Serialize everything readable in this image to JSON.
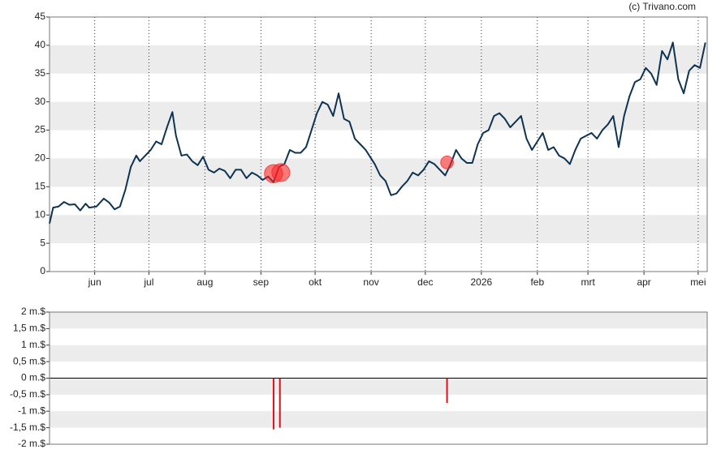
{
  "credit": "(c) Trivano.com",
  "chart_data": [
    {
      "type": "line",
      "color": "#0e3352",
      "grid": true,
      "xlim": [
        0,
        364
      ],
      "ylim": [
        0,
        45
      ],
      "yticks": [
        0,
        5,
        10,
        15,
        20,
        25,
        30,
        35,
        40,
        45
      ],
      "xticks": [
        {
          "value": 25,
          "label": "jun"
        },
        {
          "value": 55,
          "label": "jul"
        },
        {
          "value": 86,
          "label": "aug"
        },
        {
          "value": 117,
          "label": "sep"
        },
        {
          "value": 147,
          "label": "okt"
        },
        {
          "value": 178,
          "label": "nov"
        },
        {
          "value": 208,
          "label": "dec"
        },
        {
          "value": 239,
          "label": "2026"
        },
        {
          "value": 270,
          "label": "feb"
        },
        {
          "value": 298,
          "label": "mrt"
        },
        {
          "value": 329,
          "label": "apr"
        },
        {
          "value": 359,
          "label": "mei"
        }
      ],
      "x": [
        0,
        2,
        5,
        8,
        11,
        14,
        17,
        20,
        22,
        26,
        30,
        33,
        36,
        39,
        42,
        45,
        48,
        50,
        53,
        56,
        59,
        62,
        65,
        68,
        70,
        73,
        76,
        79,
        82,
        85,
        88,
        91,
        94,
        97,
        100,
        103,
        106,
        109,
        112,
        115,
        118,
        121,
        124,
        127,
        130,
        133,
        136,
        139,
        142,
        145,
        148,
        151,
        154,
        157,
        160,
        163,
        166,
        169,
        172,
        175,
        178,
        180,
        183,
        186,
        189,
        192,
        195,
        198,
        201,
        204,
        207,
        210,
        213,
        216,
        219,
        222,
        225,
        228,
        231,
        234,
        237,
        240,
        243,
        246,
        249,
        252,
        255,
        258,
        261,
        264,
        267,
        270,
        273,
        276,
        279,
        282,
        285,
        288,
        291,
        294,
        297,
        300,
        303,
        306,
        309,
        312,
        315,
        318,
        321,
        324,
        327,
        330,
        333,
        336,
        339,
        342,
        345,
        348,
        351,
        354,
        357,
        360,
        363
      ],
      "values": [
        8.5,
        11.3,
        11.5,
        12.3,
        11.8,
        11.9,
        10.8,
        12.0,
        11.3,
        11.5,
        12.9,
        12.2,
        11.0,
        11.5,
        14.5,
        18.5,
        20.5,
        19.5,
        20.5,
        21.5,
        23.0,
        22.5,
        25.5,
        28.2,
        24.0,
        20.5,
        20.7,
        19.5,
        18.8,
        20.3,
        18.0,
        17.5,
        18.2,
        17.8,
        16.5,
        18.0,
        18.0,
        16.5,
        17.5,
        17.0,
        16.2,
        16.8,
        15.8,
        18.5,
        19.0,
        21.5,
        21.0,
        21.0,
        22.0,
        25.0,
        28.0,
        30.0,
        29.5,
        27.5,
        31.5,
        27.0,
        26.5,
        23.5,
        22.5,
        21.5,
        20.0,
        19.0,
        17.0,
        16.0,
        13.5,
        13.8,
        15.0,
        16.0,
        17.5,
        17.0,
        18.0,
        19.5,
        19.0,
        18.0,
        17.0,
        19.0,
        21.5,
        20.0,
        19.2,
        19.2,
        22.5,
        24.5,
        25.0,
        27.5,
        28.0,
        27.0,
        25.5,
        26.5,
        27.5,
        23.5,
        21.5,
        23.0,
        24.5,
        21.5,
        22.0,
        20.5,
        20.0,
        19.0,
        21.5,
        23.5,
        24.0,
        24.5,
        23.5,
        25.0,
        26.0,
        27.5,
        22.0,
        27.5,
        31.0,
        33.5,
        34.0,
        36.0,
        35.0,
        33.0,
        39.0,
        37.5,
        40.5,
        34.0,
        31.5,
        35.5,
        36.5,
        36.0,
        40.5
      ],
      "markers": {
        "color": "#ff2020",
        "x": [
          124,
          128,
          220
        ],
        "values": [
          17.3,
          17.5,
          19.3
        ]
      }
    },
    {
      "type": "bar",
      "color": "#e0101a",
      "xlim": [
        0,
        364
      ],
      "ylim": [
        -2,
        2
      ],
      "yticks": [
        {
          "value": -2,
          "label": "-2 m.$"
        },
        {
          "value": -1.5,
          "label": "-1,5 m.$"
        },
        {
          "value": -1,
          "label": "-1 m.$"
        },
        {
          "value": -0.5,
          "label": "-0,5 m.$"
        },
        {
          "value": 0,
          "label": "0 m.$"
        },
        {
          "value": 0.5,
          "label": "0,5 m.$"
        },
        {
          "value": 1,
          "label": "1 m.$"
        },
        {
          "value": 1.5,
          "label": "1,5 m.$"
        },
        {
          "value": 2,
          "label": "2 m.$"
        }
      ],
      "x": [
        124,
        127.5,
        220
      ],
      "values": [
        -1.55,
        -1.5,
        -0.75
      ]
    }
  ]
}
